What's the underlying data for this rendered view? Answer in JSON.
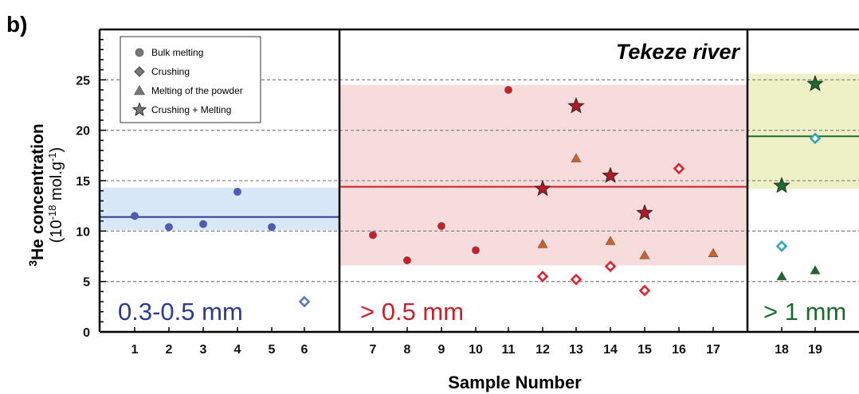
{
  "panel_label": "b)",
  "chart_data": {
    "type": "scatter",
    "title": "",
    "xlabel": "Sample Number",
    "ylabel_line1": "3He concentration",
    "ylabel_line1_sup": "3",
    "ylabel_line1_main": "He concentration",
    "ylabel_line2_pre": "(10",
    "ylabel_line2_exp": "-18",
    "ylabel_line2_mid": " mol.g",
    "ylabel_line2_exp2": "-1",
    "ylabel_line2_post": ")",
    "ylim": [
      0,
      30
    ],
    "yticks": [
      0,
      5,
      10,
      15,
      20,
      25
    ],
    "xticks": [
      1,
      2,
      3,
      4,
      5,
      6,
      7,
      8,
      9,
      10,
      11,
      12,
      13,
      14,
      15,
      16,
      17,
      18,
      19
    ],
    "grid": "dashed horizontal at 5, 10, 15, 20, 25",
    "annotation": "Tekeze river",
    "legend_position": "top-left",
    "legend": [
      {
        "label": "Bulk melting",
        "marker": "circle"
      },
      {
        "label": "Crushing",
        "marker": "diamond"
      },
      {
        "label": "Melting of the powder",
        "marker": "triangle"
      },
      {
        "label": "Crushing + Melting",
        "marker": "star"
      }
    ],
    "groups": [
      {
        "label": "0.3-0.5 mm",
        "color": "#2e3a8f",
        "band_color": "#d8e8f8",
        "x_range": [
          1,
          6
        ],
        "band": [
          10.1,
          14.3
        ],
        "mean": 11.4,
        "points": [
          {
            "sample": 1,
            "value": 11.5,
            "marker": "circle"
          },
          {
            "sample": 2,
            "value": 10.4,
            "marker": "circle"
          },
          {
            "sample": 3,
            "value": 10.7,
            "marker": "circle"
          },
          {
            "sample": 4,
            "value": 13.9,
            "marker": "circle"
          },
          {
            "sample": 5,
            "value": 10.4,
            "marker": "circle"
          },
          {
            "sample": 6,
            "value": 3.0,
            "marker": "diamond"
          }
        ]
      },
      {
        "label": "> 0.5 mm",
        "color": "#cc1f27",
        "band_color": "#f7dcdc",
        "x_range": [
          7,
          17
        ],
        "band": [
          6.6,
          24.5
        ],
        "mean": 14.4,
        "points": [
          {
            "sample": 7,
            "value": 9.6,
            "marker": "circle"
          },
          {
            "sample": 8,
            "value": 7.1,
            "marker": "circle"
          },
          {
            "sample": 9,
            "value": 10.5,
            "marker": "circle"
          },
          {
            "sample": 10,
            "value": 8.1,
            "marker": "circle"
          },
          {
            "sample": 11,
            "value": 24.0,
            "marker": "circle"
          },
          {
            "sample": 12,
            "value": 14.2,
            "marker": "star"
          },
          {
            "sample": 12,
            "value": 8.7,
            "marker": "triangle"
          },
          {
            "sample": 12,
            "value": 5.5,
            "marker": "diamond"
          },
          {
            "sample": 13,
            "value": 22.4,
            "marker": "star"
          },
          {
            "sample": 13,
            "value": 17.2,
            "marker": "triangle"
          },
          {
            "sample": 13,
            "value": 5.2,
            "marker": "diamond"
          },
          {
            "sample": 14,
            "value": 15.5,
            "marker": "star"
          },
          {
            "sample": 14,
            "value": 9.0,
            "marker": "triangle"
          },
          {
            "sample": 14,
            "value": 6.5,
            "marker": "diamond"
          },
          {
            "sample": 15,
            "value": 11.8,
            "marker": "star"
          },
          {
            "sample": 15,
            "value": 7.6,
            "marker": "triangle"
          },
          {
            "sample": 15,
            "value": 4.1,
            "marker": "diamond"
          },
          {
            "sample": 16,
            "value": 16.2,
            "marker": "diamond"
          },
          {
            "sample": 17,
            "value": 7.8,
            "marker": "triangle"
          }
        ]
      },
      {
        "label": "> 1 mm",
        "color": "#1d6b2c",
        "band_color": "#eef0c6",
        "x_range": [
          18,
          19
        ],
        "band": [
          14.2,
          25.6
        ],
        "mean": 19.4,
        "points": [
          {
            "sample": 18,
            "value": 14.5,
            "marker": "star"
          },
          {
            "sample": 18,
            "value": 8.5,
            "marker": "diamond",
            "color": "#2fa7b0"
          },
          {
            "sample": 18,
            "value": 5.5,
            "marker": "triangle"
          },
          {
            "sample": 19,
            "value": 24.6,
            "marker": "star"
          },
          {
            "sample": 19,
            "value": 19.2,
            "marker": "diamond",
            "color": "#2fa7b0"
          },
          {
            "sample": 19,
            "value": 6.1,
            "marker": "triangle"
          }
        ]
      }
    ]
  }
}
